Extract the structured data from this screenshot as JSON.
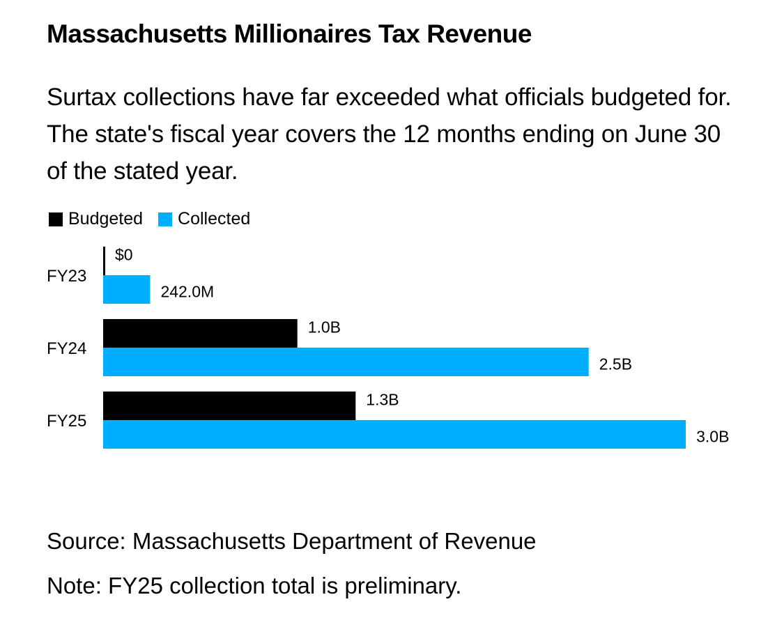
{
  "header": {
    "title": "Massachusetts Millionaires Tax Revenue",
    "subtitle": "Surtax collections have far exceeded what officials budgeted for. The state's fiscal year covers the 12 months ending on June 30 of the stated year."
  },
  "colors": {
    "budgeted": "#000000",
    "collected": "#00aeff"
  },
  "chart_data": {
    "type": "bar",
    "orientation": "horizontal",
    "title": "Massachusetts Millionaires Tax Revenue",
    "xlabel": "",
    "ylabel": "",
    "unit": "USD billions",
    "categories": [
      "FY23",
      "FY24",
      "FY25"
    ],
    "series": [
      {
        "name": "Budgeted",
        "values": [
          0,
          1.0,
          1.3
        ],
        "labels": [
          "$0",
          "1.0B",
          "1.3B"
        ]
      },
      {
        "name": "Collected",
        "values": [
          0.242,
          2.5,
          3.0
        ],
        "labels": [
          "242.0M",
          "2.5B",
          "3.0B"
        ]
      }
    ],
    "xlim": [
      0,
      3.0
    ],
    "grid": false,
    "legend_position": "top-left"
  },
  "footer": {
    "source": "Source: Massachusetts Department of Revenue",
    "note": "Note: FY25 collection total is preliminary."
  }
}
